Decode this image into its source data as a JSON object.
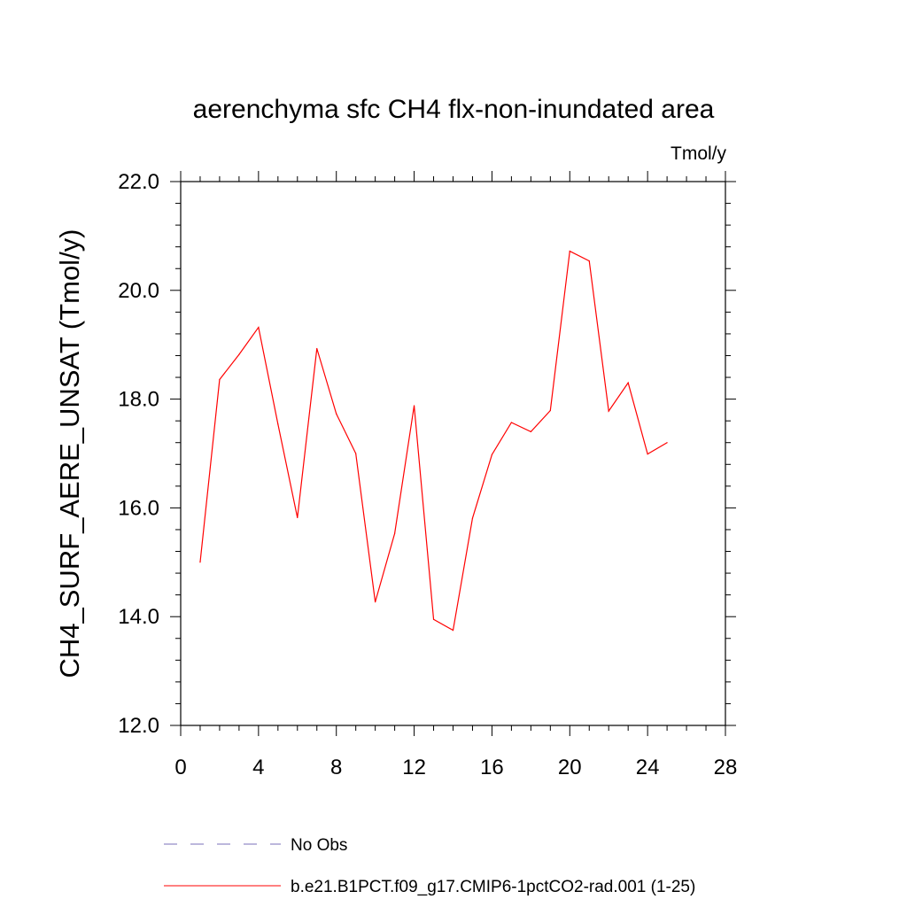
{
  "chart_data": {
    "type": "line",
    "title": "aerenchyma sfc CH4 flx-non-inundated area",
    "units": "Tmol/y",
    "ylabel": "CH4_SURF_AERE_UNSAT  (Tmol/y)",
    "xlabel": "",
    "xlim": [
      0,
      28
    ],
    "ylim": [
      12.0,
      22.0
    ],
    "xticks": [
      "0",
      "4",
      "8",
      "12",
      "16",
      "20",
      "24",
      "28"
    ],
    "yticks": [
      "12.0",
      "14.0",
      "16.0",
      "18.0",
      "20.0",
      "22.0"
    ],
    "x": [
      1,
      2,
      3,
      4,
      5,
      6,
      7,
      8,
      9,
      10,
      11,
      12,
      13,
      14,
      15,
      16,
      17,
      18,
      19,
      20,
      21,
      22,
      23,
      24,
      25
    ],
    "series": [
      {
        "name": "b.e21.B1PCT.f09_g17.CMIP6-1pctCO2-rad.001 (1-25)",
        "color": "#ff0000",
        "values": [
          15.0,
          18.36,
          18.82,
          19.32,
          17.54,
          15.82,
          18.93,
          17.73,
          17.0,
          14.27,
          15.53,
          17.88,
          13.95,
          13.75,
          15.81,
          16.98,
          17.57,
          17.4,
          17.79,
          20.72,
          20.54,
          17.78,
          18.3,
          16.99,
          17.2
        ]
      }
    ],
    "legend": [
      {
        "label": "No Obs",
        "color": "#7a6fb8",
        "style": "dashed"
      },
      {
        "label": "b.e21.B1PCT.f09_g17.CMIP6-1pctCO2-rad.001 (1-25)",
        "color": "#ff0000",
        "style": "solid"
      }
    ],
    "grid": false,
    "legend_position": "bottom"
  }
}
